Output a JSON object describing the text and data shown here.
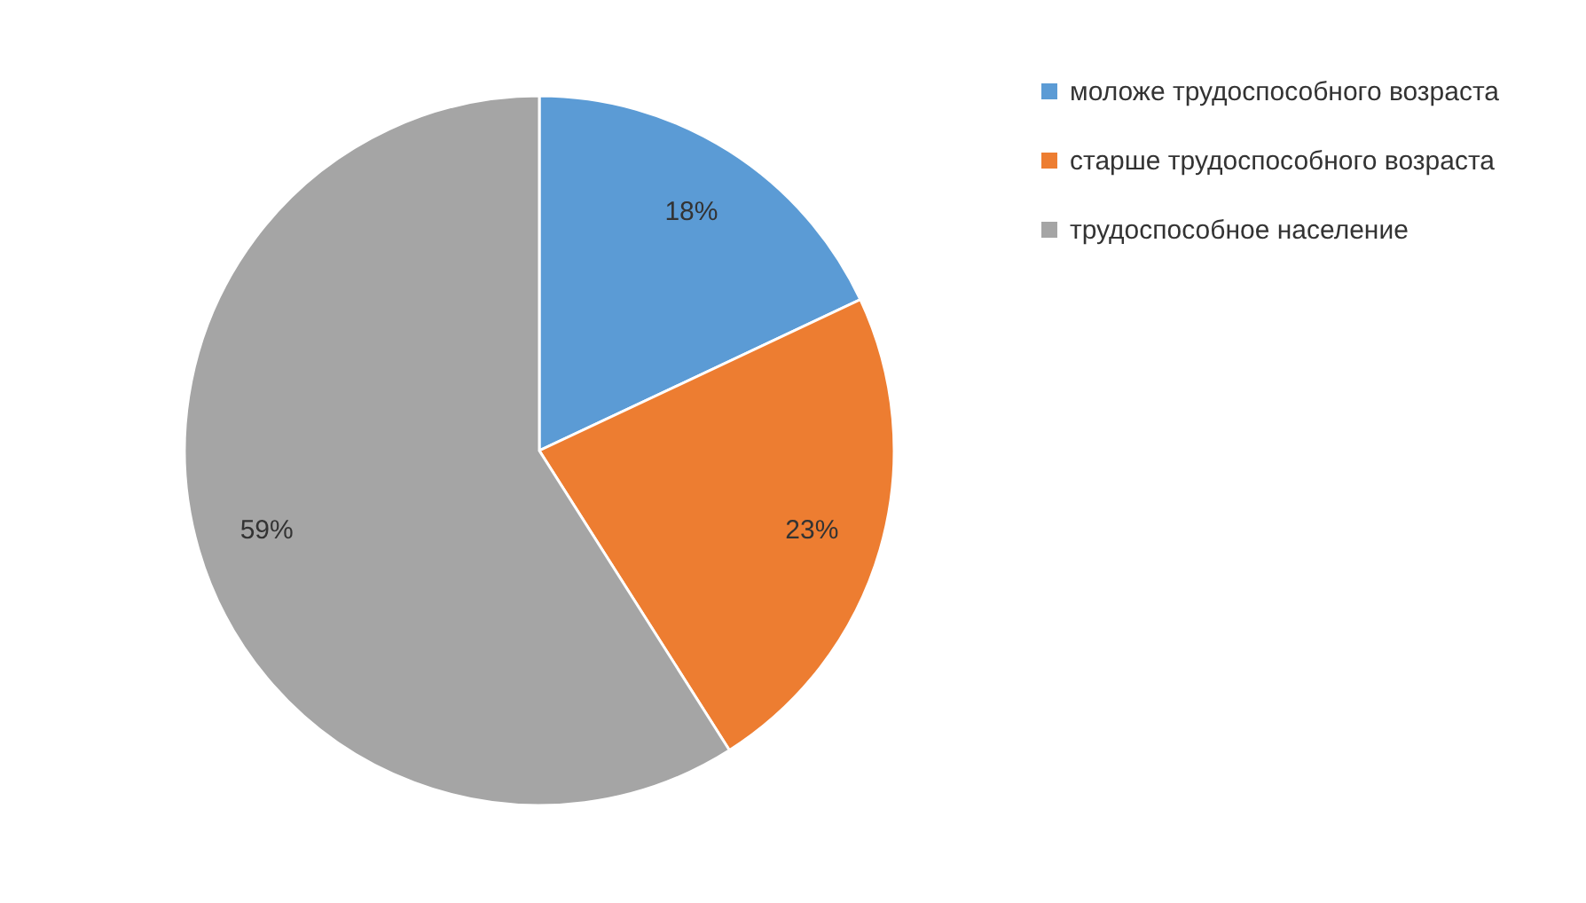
{
  "chart_data": {
    "type": "pie",
    "categories": [
      "моложе трудоспособного возраста",
      "старше трудоспособного возраста",
      "трудоспособное население"
    ],
    "values": [
      18,
      23,
      59
    ],
    "colors": [
      "#5b9bd5",
      "#ed7d31",
      "#a5a5a5"
    ],
    "value_labels": [
      "18%",
      "23%",
      "59%"
    ],
    "legend": "right"
  }
}
